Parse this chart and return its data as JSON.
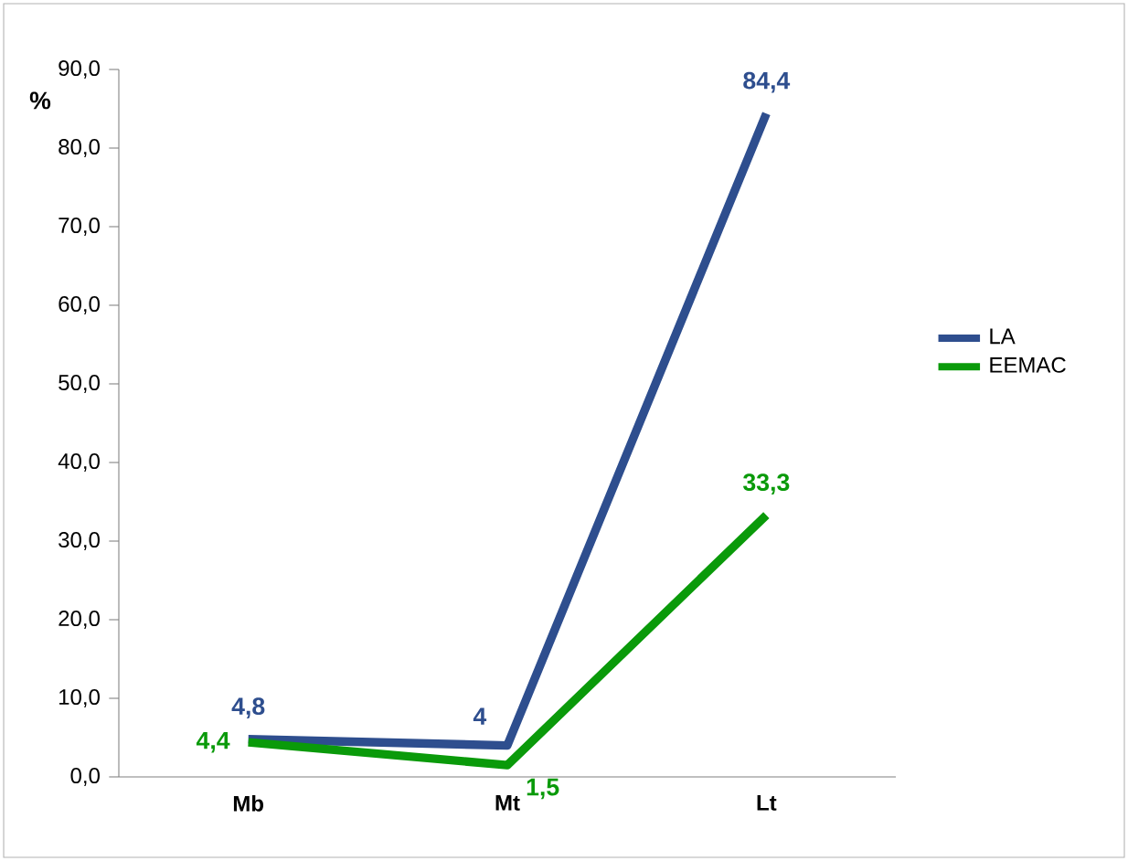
{
  "chart_data": {
    "type": "line",
    "ylabel": "%",
    "categories": [
      "Mb",
      "Mt",
      "Lt"
    ],
    "ylim": [
      0,
      90
    ],
    "yticks": [
      {
        "value": 0,
        "label": "0,0"
      },
      {
        "value": 10,
        "label": "10,0"
      },
      {
        "value": 20,
        "label": "20,0"
      },
      {
        "value": 30,
        "label": "30,0"
      },
      {
        "value": 40,
        "label": "40,0"
      },
      {
        "value": 50,
        "label": "50,0"
      },
      {
        "value": 60,
        "label": "60,0"
      },
      {
        "value": 70,
        "label": "70,0"
      },
      {
        "value": 80,
        "label": "80,0"
      },
      {
        "value": 90,
        "label": "90,0"
      }
    ],
    "legend": "right",
    "grid": false,
    "marker": "none",
    "line_style": "solid",
    "series": [
      {
        "name": "LA",
        "color": "#2e4e8e",
        "values": [
          4.8,
          4,
          84.4
        ],
        "value_labels": [
          "4,8",
          "4",
          "84,4"
        ]
      },
      {
        "name": "EEMAC",
        "color": "#0a9a0a",
        "values": [
          4.4,
          1.5,
          33.3
        ],
        "value_labels": [
          "4,4",
          "1,5",
          "33,3"
        ]
      }
    ]
  }
}
